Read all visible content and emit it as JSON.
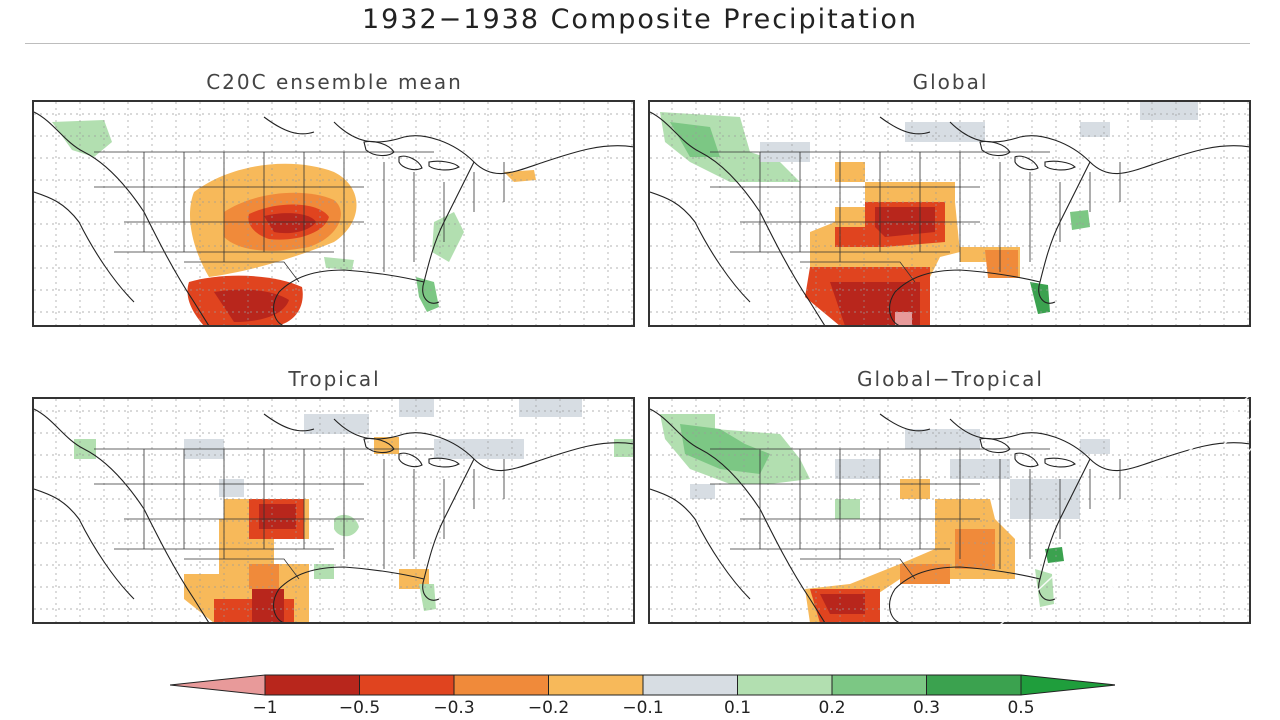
{
  "figure": {
    "title": "1932−1938 Composite Precipitation",
    "panels": [
      {
        "key": "c20c",
        "title": "C20C ensemble mean"
      },
      {
        "key": "global",
        "title": "Global"
      },
      {
        "key": "tropical",
        "title": "Tropical"
      },
      {
        "key": "global_tropical",
        "title": "Global−Tropical"
      }
    ],
    "colorbar": {
      "labels": [
        "−1",
        "−0.5",
        "−0.3",
        "−0.2",
        "−0.1",
        "0.1",
        "0.2",
        "0.3",
        "0.5"
      ],
      "colors": [
        "#e89a9a",
        "#b8261c",
        "#e0441f",
        "#f08a3a",
        "#f7b95a",
        "#d7dde3",
        "#b2dfb0",
        "#7cc784",
        "#3ba24f",
        "#1f9e3c"
      ]
    }
  }
}
